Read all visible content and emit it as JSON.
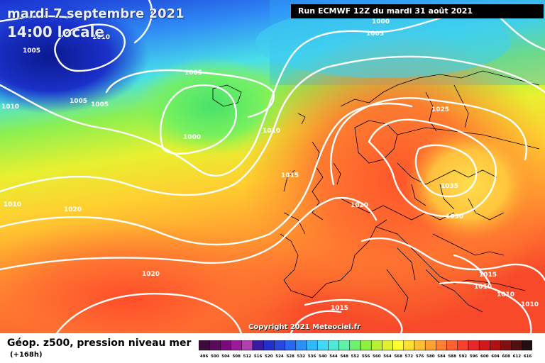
{
  "header": {
    "date": "mardi 7 septembre 2021",
    "time": "14:00 locale",
    "run": "Run ECMWF 12Z du mardi 31 août 2021"
  },
  "copyright": "Copyright 2021 Meteociel.fr",
  "legend": {
    "title": "Géop. z500, pression niveau mer",
    "subtitle": "(+168h)",
    "scale_values": [
      "496",
      "500",
      "504",
      "508",
      "512",
      "516",
      "520",
      "524",
      "528",
      "532",
      "536",
      "540",
      "544",
      "548",
      "552",
      "556",
      "560",
      "564",
      "568",
      "572",
      "576",
      "580",
      "584",
      "588",
      "592",
      "596",
      "600",
      "604",
      "608",
      "612",
      "616"
    ],
    "scale_colors": [
      "#3c0c3c",
      "#5a0a5a",
      "#7a0a7a",
      "#9a1a9a",
      "#b040b0",
      "#3a1aa0",
      "#2030c8",
      "#2848e0",
      "#2868f0",
      "#2890f8",
      "#30b8ff",
      "#40d8f8",
      "#50e8d8",
      "#60f0a8",
      "#70f070",
      "#90f040",
      "#b8f030",
      "#e0f030",
      "#ffff30",
      "#ffe030",
      "#ffc030",
      "#ffa030",
      "#ff8030",
      "#ff6030",
      "#f84030",
      "#e82828",
      "#d01818",
      "#b01010",
      "#801010",
      "#501010",
      "#201010"
    ]
  },
  "isobar_labels": [
    "1010",
    "1000",
    "1005",
    "1005",
    "1005",
    "1005",
    "1010",
    "1005",
    "1000",
    "1010",
    "1015",
    "1010",
    "1020",
    "1020",
    "1020",
    "1025",
    "1035",
    "1030",
    "1015",
    "1010",
    "1010",
    "1010",
    "1015"
  ]
}
